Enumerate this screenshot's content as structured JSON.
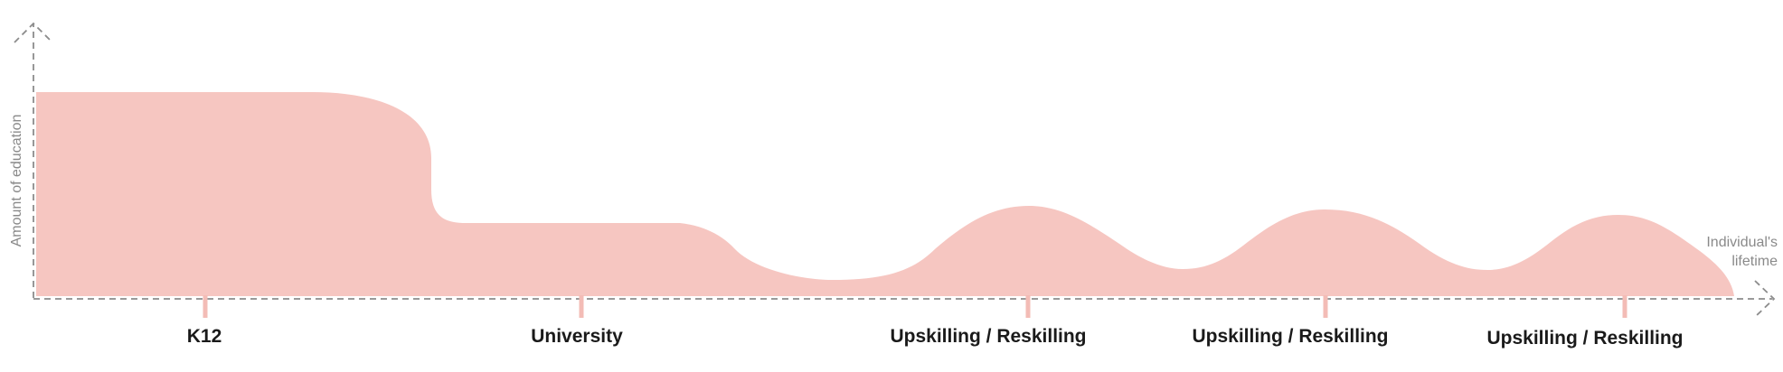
{
  "diagram": {
    "y_axis_label": "Amount of education",
    "x_axis_label_line1": "Individual's",
    "x_axis_label_line2": "lifetime",
    "stages": [
      {
        "label": "K12"
      },
      {
        "label": "University"
      },
      {
        "label": "Upskilling / Reskilling"
      },
      {
        "label": "Upskilling / Reskilling"
      },
      {
        "label": "Upskilling / Reskilling"
      }
    ]
  },
  "colors": {
    "area_fill": "#f6c6c1",
    "tick": "#f3bcb6",
    "axis": "#8c8c8c",
    "label_text": "#1a1a1a",
    "axis_text": "#8a8a8a"
  }
}
